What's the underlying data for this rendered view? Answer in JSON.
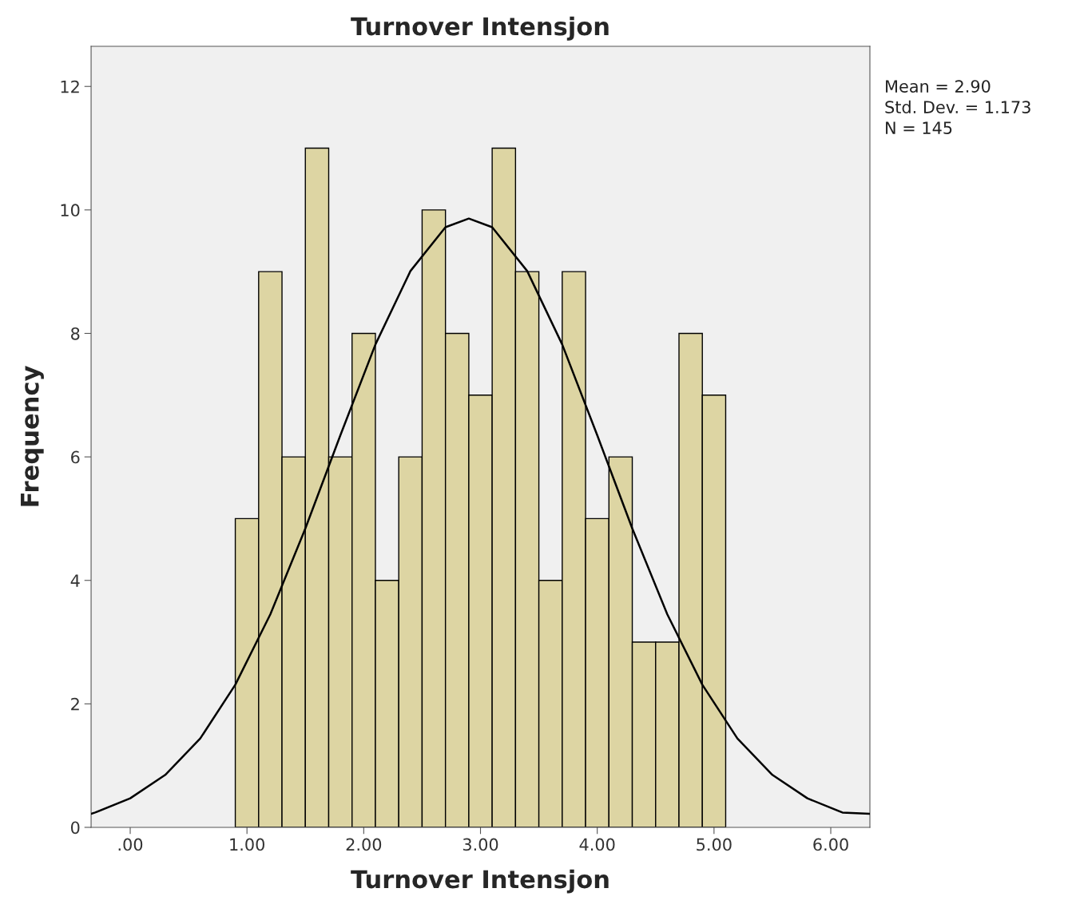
{
  "chart_data": {
    "type": "histogram",
    "title": "Turnover Intensjon",
    "xlabel": "Turnover Intensjon",
    "ylabel": "Frequency",
    "bins": [
      0.9,
      1.1,
      1.3,
      1.5,
      1.7,
      1.9,
      2.1,
      2.3,
      2.5,
      2.7,
      2.9,
      3.1,
      3.3,
      3.5,
      3.7,
      3.9,
      4.1,
      4.3,
      4.5,
      4.7,
      4.9,
      5.1
    ],
    "values": [
      5,
      9,
      6,
      11,
      6,
      8,
      4,
      6,
      10,
      8,
      7,
      11,
      9,
      4,
      9,
      5,
      6,
      3,
      3,
      8,
      7
    ],
    "color": "#ddd5a3",
    "series": [
      {
        "type": "line",
        "color": "#000000",
        "x": [
          -0.335,
          -0.3,
          0.0,
          0.3,
          0.6,
          0.9,
          1.2,
          1.5,
          1.8,
          2.1,
          2.4,
          2.7,
          2.9,
          3.1,
          3.4,
          3.7,
          4.0,
          4.3,
          4.6,
          4.9,
          5.2,
          5.5,
          5.8,
          6.1,
          6.335
        ],
        "values": [
          0.22,
          0.24,
          0.47,
          0.85,
          1.44,
          2.31,
          3.45,
          4.84,
          6.35,
          7.82,
          9.01,
          9.72,
          9.86,
          9.72,
          9.01,
          7.82,
          6.35,
          4.84,
          3.45,
          2.31,
          1.44,
          0.85,
          0.47,
          0.24,
          0.22
        ]
      }
    ],
    "xlim": [
      -0.335,
      6.335
    ],
    "ylim": [
      0,
      12.65
    ],
    "xticks": [
      {
        "value": 0,
        "label": ".00"
      },
      {
        "value": 1,
        "label": "1.00"
      },
      {
        "value": 2,
        "label": "2.00"
      },
      {
        "value": 3,
        "label": "3.00"
      },
      {
        "value": 4,
        "label": "4.00"
      },
      {
        "value": 5,
        "label": "5.00"
      },
      {
        "value": 6,
        "label": "6.00"
      }
    ],
    "yticks": [
      0,
      2,
      4,
      6,
      8,
      10,
      12
    ],
    "annotations": [
      "Mean = 2.90",
      "Std. Dev. = 1.173",
      "N = 145"
    ],
    "grid": false
  }
}
